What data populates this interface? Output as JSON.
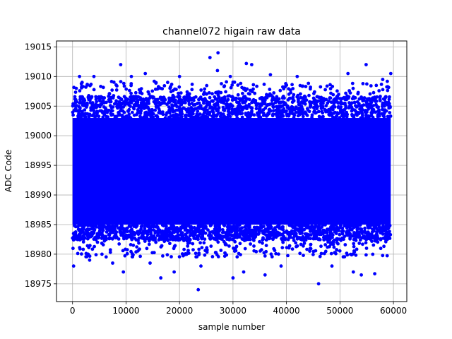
{
  "chart_data": {
    "type": "scatter",
    "title": "channel072 higain raw data",
    "xlabel": "sample number",
    "ylabel": "ADC Code",
    "xlim": [
      -3000,
      62500
    ],
    "ylim": [
      18972,
      19016
    ],
    "xticks": [
      0,
      10000,
      20000,
      30000,
      40000,
      50000,
      60000
    ],
    "yticks": [
      18975,
      18980,
      18985,
      18990,
      18995,
      19000,
      19005,
      19010,
      19015
    ],
    "grid": true,
    "marker_color": "#0000ff",
    "n_samples": 60000,
    "x_range": [
      0,
      59500
    ],
    "dense_band": [
      18983,
      19006
    ],
    "core_band": [
      18985,
      19003
    ],
    "series": [
      {
        "name": "",
        "color": "#0000ff",
        "outliers": [
          {
            "x": 200,
            "y": 18978
          },
          {
            "x": 1300,
            "y": 19010
          },
          {
            "x": 1800,
            "y": 19009
          },
          {
            "x": 3200,
            "y": 18979
          },
          {
            "x": 4000,
            "y": 19010
          },
          {
            "x": 5500,
            "y": 18980
          },
          {
            "x": 7500,
            "y": 18978.5
          },
          {
            "x": 9000,
            "y": 19012
          },
          {
            "x": 9500,
            "y": 18977
          },
          {
            "x": 11000,
            "y": 19010
          },
          {
            "x": 13600,
            "y": 19010.5
          },
          {
            "x": 14500,
            "y": 18978.5
          },
          {
            "x": 16500,
            "y": 18976
          },
          {
            "x": 19000,
            "y": 18977
          },
          {
            "x": 20000,
            "y": 19010
          },
          {
            "x": 23500,
            "y": 18974
          },
          {
            "x": 24000,
            "y": 18978
          },
          {
            "x": 25700,
            "y": 19013.2
          },
          {
            "x": 27200,
            "y": 19014
          },
          {
            "x": 27100,
            "y": 19011
          },
          {
            "x": 29500,
            "y": 19010
          },
          {
            "x": 30000,
            "y": 18976
          },
          {
            "x": 32000,
            "y": 18977
          },
          {
            "x": 32500,
            "y": 19012.2
          },
          {
            "x": 33500,
            "y": 19012
          },
          {
            "x": 36000,
            "y": 18976.5
          },
          {
            "x": 37000,
            "y": 19010.3
          },
          {
            "x": 39000,
            "y": 18978
          },
          {
            "x": 42000,
            "y": 19010
          },
          {
            "x": 46000,
            "y": 18975
          },
          {
            "x": 48500,
            "y": 18978
          },
          {
            "x": 51500,
            "y": 19010.5
          },
          {
            "x": 52500,
            "y": 18977
          },
          {
            "x": 54000,
            "y": 18976.5
          },
          {
            "x": 54900,
            "y": 19012
          },
          {
            "x": 56500,
            "y": 18976.7
          },
          {
            "x": 58000,
            "y": 19009.5
          },
          {
            "x": 59500,
            "y": 19010.5
          }
        ]
      }
    ]
  }
}
